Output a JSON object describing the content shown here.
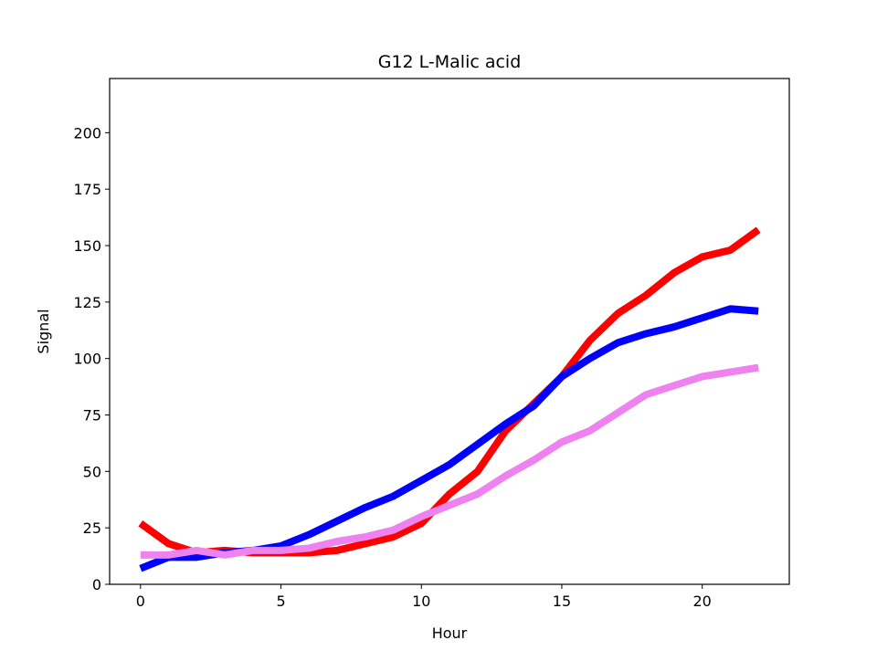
{
  "chart_data": {
    "type": "line",
    "title": "G12 L-Malic acid",
    "xlabel": "Hour",
    "ylabel": "Signal",
    "x": [
      0,
      1,
      2,
      3,
      4,
      5,
      6,
      7,
      8,
      9,
      10,
      11,
      12,
      13,
      14,
      15,
      16,
      17,
      18,
      19,
      20,
      21,
      22
    ],
    "series": [
      {
        "color": "#ff0000",
        "values": [
          27,
          18,
          14,
          15,
          14,
          14,
          14,
          15,
          18,
          21,
          27,
          40,
          50,
          68,
          80,
          92,
          108,
          120,
          128,
          138,
          145,
          148,
          157
        ]
      },
      {
        "color": "#0000ff",
        "values": [
          7,
          12,
          12,
          14,
          15,
          17,
          22,
          28,
          34,
          39,
          46,
          53,
          62,
          71,
          79,
          92,
          100,
          107,
          111,
          114,
          118,
          122,
          121
        ]
      },
      {
        "color": "#ee82ee",
        "values": [
          13,
          13,
          15,
          13,
          15,
          15,
          16,
          19,
          21,
          24,
          30,
          35,
          40,
          48,
          55,
          63,
          68,
          76,
          84,
          88,
          92,
          94,
          96
        ]
      }
    ],
    "xlim": [
      -1.1,
      23.1
    ],
    "xticks": [
      0,
      5,
      10,
      15,
      20
    ],
    "ylim": [
      0,
      224
    ],
    "yticks": [
      0,
      25,
      50,
      75,
      100,
      125,
      150,
      175,
      200
    ]
  }
}
